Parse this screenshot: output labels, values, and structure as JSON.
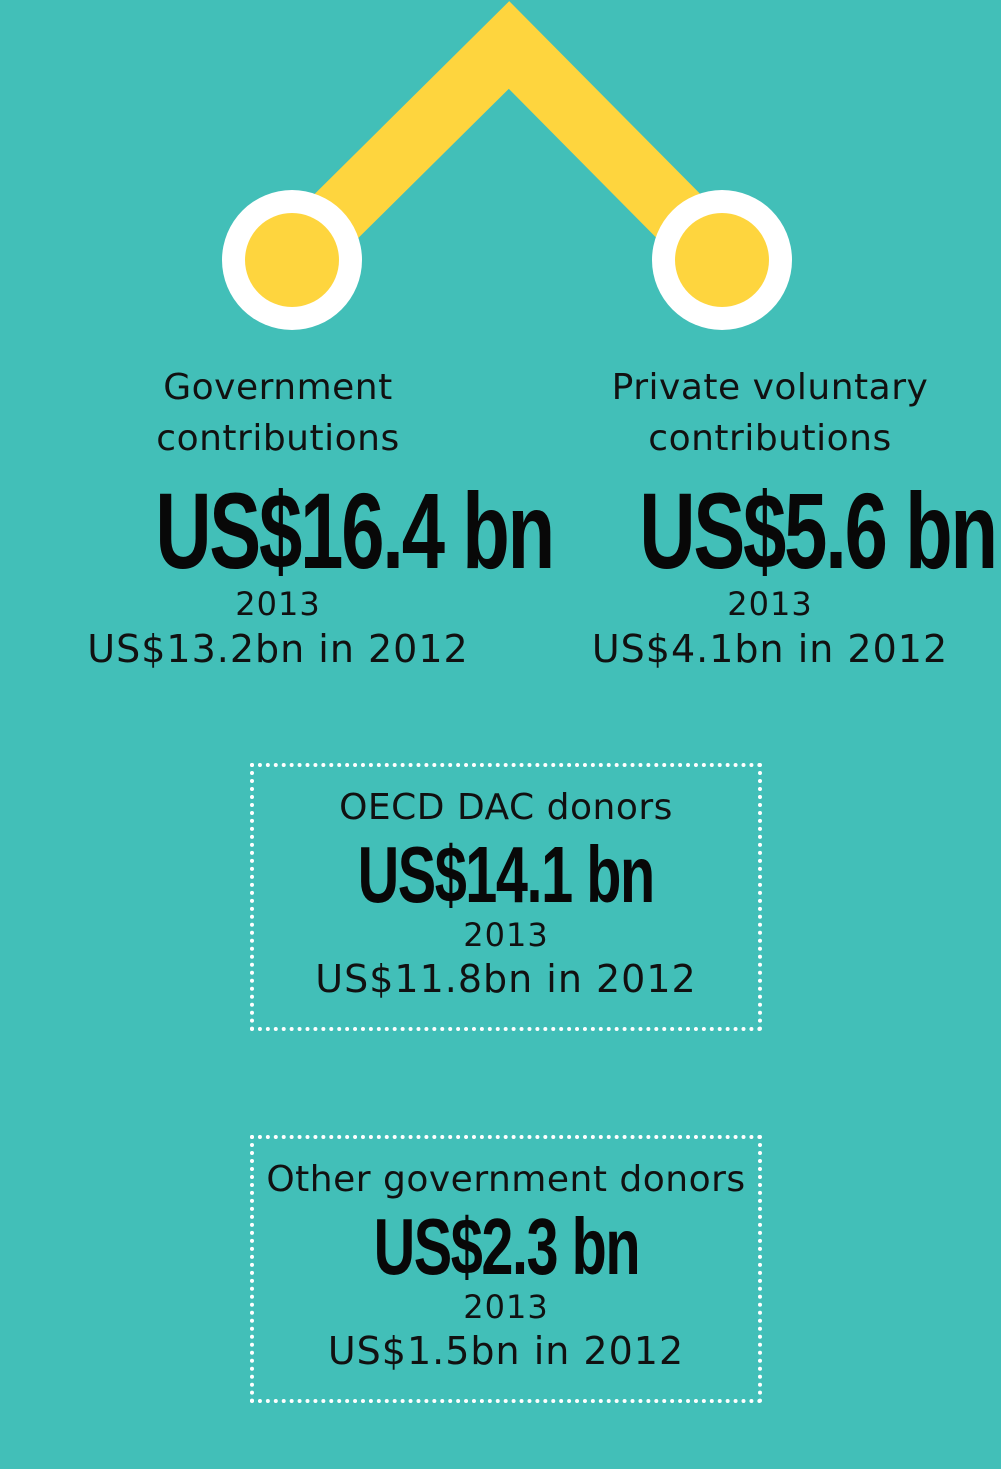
{
  "colors": {
    "background": "#42BFB8",
    "connector": "#FED53E",
    "ring": "#FFFFFF",
    "text": "#111111"
  },
  "left_node": {
    "label_line1": "Government",
    "label_line2": "contributions",
    "amount": "US$16.4 bn",
    "year": "2013",
    "previous": "US$13.2bn in 2012"
  },
  "right_node": {
    "label_line1": "Private voluntary",
    "label_line2": "contributions",
    "amount": "US$5.6 bn",
    "year": "2013",
    "previous": "US$4.1bn in 2012"
  },
  "oecd_box": {
    "label": "OECD DAC donors",
    "amount": "US$14.1 bn",
    "year": "2013",
    "previous": "US$11.8bn in 2012"
  },
  "other_box": {
    "label": "Other government donors",
    "amount": "US$2.3 bn",
    "year": "2013",
    "previous": "US$1.5bn in 2012"
  }
}
